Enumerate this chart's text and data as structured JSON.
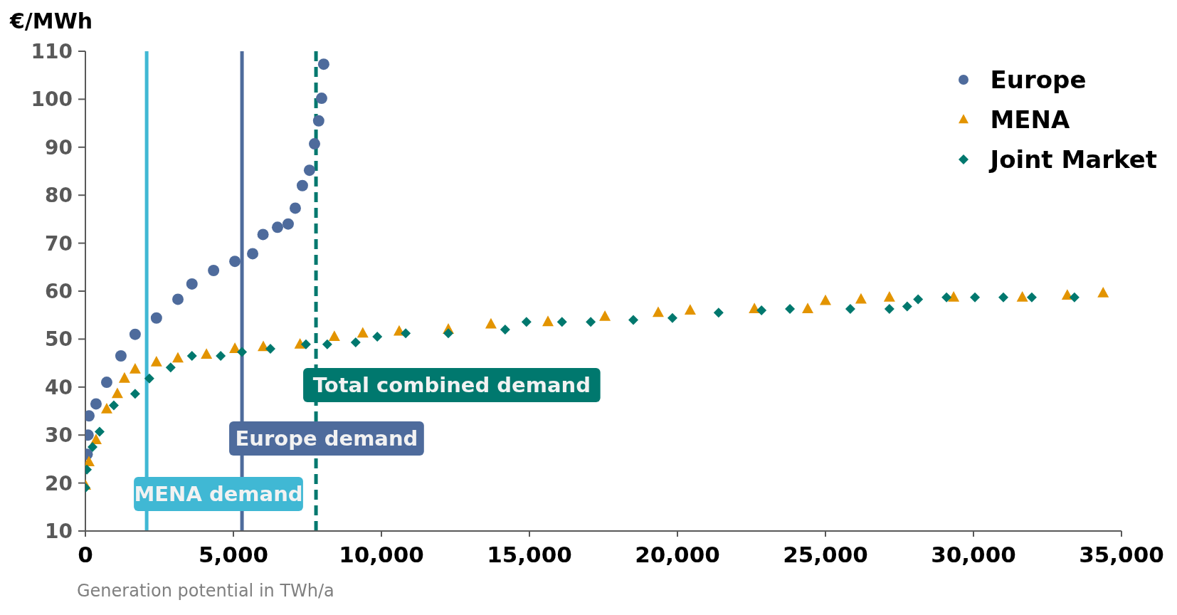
{
  "chart_data": {
    "type": "scatter",
    "ylabel": "€/MWh",
    "xlabel": "Generation potential in TWh/a",
    "xlim": [
      0,
      35000
    ],
    "xticks": [
      0,
      {
        "value": 5000,
        "label": "5,000"
      },
      {
        "value": 10000,
        "label": "10,000"
      },
      {
        "value": 15000,
        "label": "15,000"
      },
      {
        "value": 20000,
        "label": "20,000"
      },
      {
        "value": 25000,
        "label": "25,000"
      },
      {
        "value": 30000,
        "label": "30,000"
      },
      {
        "value": 35000,
        "label": "35,000"
      }
    ],
    "ylim": [
      10,
      110
    ],
    "yticks": [
      10,
      20,
      30,
      40,
      50,
      60,
      70,
      80,
      90,
      100,
      110
    ],
    "grid": false,
    "legend": "top right",
    "series": [
      {
        "name": "Europe",
        "color": "#4e6b9c",
        "marker": "circle",
        "x": [
          60,
          90,
          120,
          360,
          720,
          1200,
          1680,
          2400,
          3125,
          3600,
          4330,
          5050,
          5650,
          6000,
          6490,
          6850,
          7090,
          7330,
          7570,
          7740,
          7880,
          7980,
          8050
        ],
        "values": [
          26,
          30,
          34,
          36.5,
          41,
          46.5,
          51,
          54.4,
          58.3,
          61.5,
          64.3,
          66.2,
          67.8,
          71.8,
          73.3,
          74,
          77.3,
          82,
          85.2,
          90.7,
          95.5,
          100.2,
          107.3
        ]
      },
      {
        "name": "MENA",
        "color": "#e39400",
        "marker": "triangle",
        "x": [
          0,
          120,
          360,
          720,
          1080,
          1320,
          1680,
          2400,
          3125,
          4090,
          5050,
          6010,
          7250,
          8410,
          9370,
          10600,
          12260,
          13700,
          15625,
          17550,
          19350,
          20430,
          22600,
          24400,
          25000,
          26200,
          27160,
          29330,
          31650,
          33170,
          34380
        ],
        "values": [
          19.5,
          24.4,
          29,
          35.4,
          38.6,
          41.8,
          43.7,
          45.2,
          46,
          46.8,
          48,
          48.4,
          48.9,
          50.5,
          51.2,
          51.6,
          52,
          53.1,
          53.6,
          54.7,
          55.5,
          56,
          56.3,
          56.3,
          58,
          58.3,
          58.7,
          58.7,
          58.7,
          59.1,
          59.6
        ]
      },
      {
        "name": "Joint Market",
        "color": "#00786e",
        "marker": "diamond",
        "x": [
          0,
          50,
          240,
          480,
          960,
          1680,
          2160,
          2880,
          3600,
          4570,
          5290,
          6250,
          7450,
          8170,
          9130,
          9860,
          10820,
          12260,
          14180,
          14900,
          16100,
          17070,
          18510,
          19830,
          21390,
          22840,
          23800,
          25840,
          27160,
          27760,
          28130,
          29090,
          30050,
          31010,
          31970,
          33410
        ],
        "values": [
          19,
          22.8,
          27.5,
          30.7,
          36.2,
          38.6,
          41.8,
          44.1,
          46.5,
          46.5,
          47.3,
          48,
          48.9,
          48.9,
          49.3,
          50.5,
          51.2,
          51.2,
          52,
          53.6,
          53.6,
          53.6,
          54,
          54.4,
          55.5,
          56,
          56.3,
          56.3,
          56.3,
          56.8,
          58.3,
          58.7,
          58.7,
          58.7,
          58.7,
          58.7
        ]
      }
    ],
    "ref_lines": [
      {
        "axis": "x",
        "value": 2070,
        "label": "MENA demand",
        "color": "#40b8d4",
        "line_style": "solid"
      },
      {
        "axis": "x",
        "value": 5290,
        "label": "Europe demand",
        "color": "#4e6b9c",
        "line_style": "solid"
      },
      {
        "axis": "x",
        "value": 7790,
        "label": "Total combined demand",
        "color": "#00786e",
        "line_style": "dashed"
      }
    ]
  }
}
